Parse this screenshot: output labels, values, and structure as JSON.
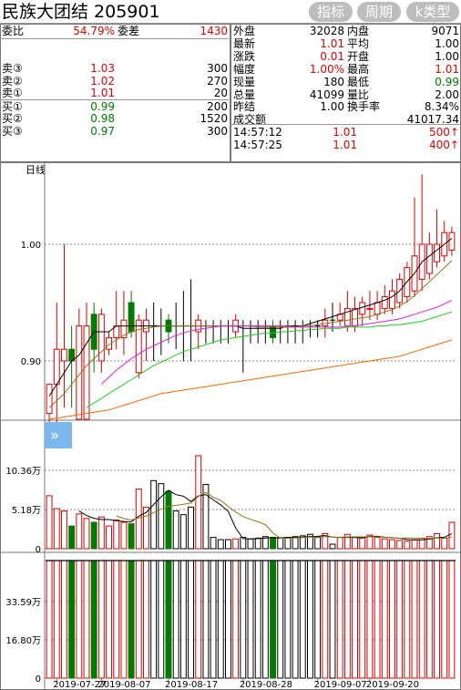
{
  "header": {
    "title": "民族大团结 205901",
    "buttons": [
      "指标",
      "周期",
      "k类型"
    ]
  },
  "order_book": {
    "weibi_label": "委比",
    "weibi_value": "54.79%",
    "weicha_label": "委差",
    "weicha_value": "1430",
    "sells": [
      {
        "label": "卖③",
        "price": "1.03",
        "volume": "300"
      },
      {
        "label": "卖②",
        "price": "1.02",
        "volume": "270"
      },
      {
        "label": "卖①",
        "price": "1.01",
        "volume": "20"
      }
    ],
    "buys": [
      {
        "label": "买①",
        "price": "0.99",
        "volume": "200"
      },
      {
        "label": "买②",
        "price": "0.98",
        "volume": "1520"
      },
      {
        "label": "买③",
        "price": "0.97",
        "volume": "300"
      }
    ]
  },
  "quote": {
    "rows": [
      {
        "l1": "外盘",
        "v1": "32028",
        "l2": "内盘",
        "v2": "9071",
        "c1": "blk",
        "c2": "blk"
      },
      {
        "l1": "最新",
        "v1": "1.01",
        "l2": "平均",
        "v2": "1.00",
        "c1": "red",
        "c2": "blk"
      },
      {
        "l1": "涨跌",
        "v1": "0.01",
        "l2": "开盘",
        "v2": "1.00",
        "c1": "red",
        "c2": "blk"
      },
      {
        "l1": "幅度",
        "v1": "1.00%",
        "l2": "最高",
        "v2": "1.01",
        "c1": "red",
        "c2": "red"
      },
      {
        "l1": "现量",
        "v1": "180",
        "l2": "最低",
        "v2": "0.99",
        "c1": "blk",
        "c2": "grn"
      },
      {
        "l1": "总量",
        "v1": "41099",
        "l2": "量比",
        "v2": "2.00",
        "c1": "blk",
        "c2": "blk"
      },
      {
        "l1": "昨结",
        "v1": "1.00",
        "l2": "换手率",
        "v2": "8.34%",
        "c1": "blk",
        "c2": "blk"
      },
      {
        "l1": "成交额",
        "v1": "",
        "l2": "",
        "v2": "41017.34",
        "c1": "blk",
        "c2": "blk"
      }
    ],
    "ticks": [
      {
        "time": "14:57:12",
        "price": "1.01",
        "volume": "500↑"
      },
      {
        "time": "14:57:25",
        "price": "1.01",
        "volume": "400↑"
      }
    ]
  },
  "colors": {
    "up": "#e00000",
    "down": "#007a00",
    "flat": "#000000",
    "ma5": "#000000",
    "ma10": "#8a7a1a",
    "ma20": "#e020e0",
    "ma30": "#22cc22",
    "ma60": "#ff6600"
  },
  "chart_data": {
    "type": "candlestick",
    "period_label": "日线",
    "price_ticks": [
      "1.00",
      "0.90"
    ],
    "price_ticks_values": [
      1.0,
      0.9
    ],
    "volume_ticks": [
      "10.36万",
      "5.18万",
      "0"
    ],
    "volume_ticks_values": [
      10.36,
      5.18,
      0
    ],
    "volume2_ticks": [
      "33.59万",
      "16.80万",
      "0"
    ],
    "volume2_ticks_values": [
      33.59,
      16.8,
      0
    ],
    "date_labels": [
      "2019-07-27",
      "2019-08-07",
      "2019-08-17",
      "2019-08-28",
      "2019-09-07",
      "2019-09-20"
    ],
    "date_label_index": [
      1,
      7,
      16,
      26,
      36,
      43
    ],
    "candles": [
      {
        "o": 0.855,
        "c": 0.88,
        "h": 0.88,
        "l": 0.845,
        "v": 7.0,
        "t": "u"
      },
      {
        "o": 0.88,
        "c": 0.91,
        "h": 0.95,
        "l": 0.84,
        "v": 5.3,
        "t": "u"
      },
      {
        "o": 0.9,
        "c": 0.91,
        "h": 1.0,
        "l": 0.86,
        "v": 5.0,
        "t": "u"
      },
      {
        "o": 0.91,
        "c": 0.9,
        "h": 0.93,
        "l": 0.86,
        "v": 3.0,
        "t": "d"
      },
      {
        "o": 0.85,
        "c": 0.93,
        "h": 0.945,
        "l": 0.85,
        "v": 4.6,
        "t": "u"
      },
      {
        "o": 0.85,
        "c": 0.93,
        "h": 0.95,
        "l": 0.85,
        "v": 4.0,
        "t": "u"
      },
      {
        "o": 0.94,
        "c": 0.91,
        "h": 0.95,
        "l": 0.89,
        "v": 3.5,
        "t": "d"
      },
      {
        "o": 0.9,
        "c": 0.94,
        "h": 0.945,
        "l": 0.89,
        "v": 4.2,
        "t": "u"
      },
      {
        "o": 0.91,
        "c": 0.92,
        "h": 0.925,
        "l": 0.905,
        "v": 3.0,
        "t": "u"
      },
      {
        "o": 0.92,
        "c": 0.93,
        "h": 0.96,
        "l": 0.91,
        "v": 3.8,
        "t": "u"
      },
      {
        "o": 0.92,
        "c": 0.935,
        "h": 0.96,
        "l": 0.905,
        "v": 3.5,
        "t": "u"
      },
      {
        "o": 0.95,
        "c": 0.925,
        "h": 0.96,
        "l": 0.92,
        "v": 3.3,
        "t": "d"
      },
      {
        "o": 0.89,
        "c": 0.935,
        "h": 0.94,
        "l": 0.885,
        "v": 7.9,
        "t": "u"
      },
      {
        "o": 0.935,
        "c": 0.925,
        "h": 0.945,
        "l": 0.9,
        "v": 5.5,
        "t": "u"
      },
      {
        "o": 0.93,
        "c": 0.93,
        "h": 0.95,
        "l": 0.9,
        "v": 9.0,
        "t": "f"
      },
      {
        "o": 0.93,
        "c": 0.93,
        "h": 0.945,
        "l": 0.905,
        "v": 8.6,
        "t": "f"
      },
      {
        "o": 0.935,
        "c": 0.925,
        "h": 0.94,
        "l": 0.915,
        "v": 7.6,
        "t": "d"
      },
      {
        "o": 0.93,
        "c": 0.93,
        "h": 0.95,
        "l": 0.91,
        "v": 5.0,
        "t": "f"
      },
      {
        "o": 0.93,
        "c": 0.93,
        "h": 0.96,
        "l": 0.9,
        "v": 4.5,
        "t": "f"
      },
      {
        "o": 0.93,
        "c": 0.93,
        "h": 0.97,
        "l": 0.9,
        "v": 5.5,
        "t": "f"
      },
      {
        "o": 0.935,
        "c": 0.925,
        "h": 0.94,
        "l": 0.91,
        "v": 12.3,
        "t": "u"
      },
      {
        "o": 0.93,
        "c": 0.93,
        "h": 0.935,
        "l": 0.915,
        "v": 8.5,
        "t": "f"
      },
      {
        "o": 0.93,
        "c": 0.93,
        "h": 0.935,
        "l": 0.915,
        "v": 1.5,
        "t": "f"
      },
      {
        "o": 0.93,
        "c": 0.93,
        "h": 0.935,
        "l": 0.915,
        "v": 1.2,
        "t": "f"
      },
      {
        "o": 0.93,
        "c": 0.93,
        "h": 0.935,
        "l": 0.915,
        "v": 1.2,
        "t": "f"
      },
      {
        "o": 0.925,
        "c": 0.935,
        "h": 0.94,
        "l": 0.92,
        "v": 1.3,
        "t": "u"
      },
      {
        "o": 0.93,
        "c": 0.93,
        "h": 0.935,
        "l": 0.89,
        "v": 1.5,
        "t": "f"
      },
      {
        "o": 0.93,
        "c": 0.93,
        "h": 0.935,
        "l": 0.915,
        "v": 1.3,
        "t": "f"
      },
      {
        "o": 0.93,
        "c": 0.93,
        "h": 0.935,
        "l": 0.915,
        "v": 1.4,
        "t": "f"
      },
      {
        "o": 0.93,
        "c": 0.93,
        "h": 0.935,
        "l": 0.915,
        "v": 1.6,
        "t": "f"
      },
      {
        "o": 0.93,
        "c": 0.92,
        "h": 0.935,
        "l": 0.915,
        "v": 1.5,
        "t": "d"
      },
      {
        "o": 0.93,
        "c": 0.93,
        "h": 0.935,
        "l": 0.915,
        "v": 1.4,
        "t": "f"
      },
      {
        "o": 0.93,
        "c": 0.93,
        "h": 0.935,
        "l": 0.915,
        "v": 1.5,
        "t": "f"
      },
      {
        "o": 0.93,
        "c": 0.93,
        "h": 0.935,
        "l": 0.915,
        "v": 1.6,
        "t": "f"
      },
      {
        "o": 0.93,
        "c": 0.93,
        "h": 0.935,
        "l": 0.915,
        "v": 1.7,
        "t": "f"
      },
      {
        "o": 0.93,
        "c": 0.93,
        "h": 0.935,
        "l": 0.92,
        "v": 1.9,
        "t": "f"
      },
      {
        "o": 0.93,
        "c": 0.93,
        "h": 0.935,
        "l": 0.92,
        "v": 1.5,
        "t": "f"
      },
      {
        "o": 0.93,
        "c": 0.935,
        "h": 0.945,
        "l": 0.92,
        "v": 2.0,
        "t": "u"
      },
      {
        "o": 0.935,
        "c": 0.935,
        "h": 0.95,
        "l": 0.925,
        "v": 0.6,
        "t": "f"
      },
      {
        "o": 0.935,
        "c": 0.94,
        "h": 0.95,
        "l": 0.93,
        "v": 1.5,
        "t": "u"
      },
      {
        "o": 0.93,
        "c": 0.945,
        "h": 0.96,
        "l": 0.925,
        "v": 1.9,
        "t": "u"
      },
      {
        "o": 0.93,
        "c": 0.945,
        "h": 0.955,
        "l": 0.925,
        "v": 1.5,
        "t": "u"
      },
      {
        "o": 0.94,
        "c": 0.95,
        "h": 0.955,
        "l": 0.93,
        "v": 1.5,
        "t": "u"
      },
      {
        "o": 0.945,
        "c": 0.945,
        "h": 0.96,
        "l": 0.935,
        "v": 1.8,
        "t": "u"
      },
      {
        "o": 0.94,
        "c": 0.95,
        "h": 0.96,
        "l": 0.935,
        "v": 1.5,
        "t": "u"
      },
      {
        "o": 0.945,
        "c": 0.955,
        "h": 0.965,
        "l": 0.94,
        "v": 1.3,
        "t": "u"
      },
      {
        "o": 0.945,
        "c": 0.96,
        "h": 0.97,
        "l": 0.94,
        "v": 1.2,
        "t": "u"
      },
      {
        "o": 0.95,
        "c": 0.97,
        "h": 0.975,
        "l": 0.945,
        "v": 1.1,
        "t": "u"
      },
      {
        "o": 0.955,
        "c": 0.98,
        "h": 0.985,
        "l": 0.95,
        "v": 1.0,
        "t": "u"
      },
      {
        "o": 0.96,
        "c": 0.99,
        "h": 1.04,
        "l": 0.955,
        "v": 1.2,
        "t": "u"
      },
      {
        "o": 0.97,
        "c": 1.0,
        "h": 1.06,
        "l": 0.96,
        "v": 1.4,
        "t": "u"
      },
      {
        "o": 0.975,
        "c": 1.0,
        "h": 1.01,
        "l": 0.97,
        "v": 1.6,
        "t": "u"
      },
      {
        "o": 0.985,
        "c": 1.0,
        "h": 1.03,
        "l": 0.98,
        "v": 2.0,
        "t": "u"
      },
      {
        "o": 0.99,
        "c": 1.01,
        "h": 1.02,
        "l": 0.985,
        "v": 1.4,
        "t": "u"
      },
      {
        "o": 0.995,
        "c": 1.01,
        "h": 1.015,
        "l": 0.99,
        "v": 3.5,
        "t": "u"
      }
    ],
    "ma_lines": [
      {
        "name": "MA5",
        "color": "#000000",
        "values": [
          0.87,
          0.88,
          0.89,
          0.9,
          0.905,
          0.915,
          0.925,
          0.925,
          0.925,
          0.93,
          0.93,
          0.93,
          0.93,
          0.93,
          0.93,
          0.93,
          0.93,
          0.93,
          0.93,
          0.93,
          0.93,
          0.93,
          0.93,
          0.93,
          0.93,
          0.93,
          0.928,
          0.928,
          0.928,
          0.928,
          0.928,
          0.928,
          0.93,
          0.93,
          0.93,
          0.932,
          0.934,
          0.936,
          0.938,
          0.94,
          0.942,
          0.944,
          0.946,
          0.948,
          0.95,
          0.952,
          0.955,
          0.96,
          0.968,
          0.975,
          0.985,
          0.99,
          0.995,
          1.0,
          1.005
        ]
      },
      {
        "name": "MA10",
        "color": "#8a7a1a",
        "values": [
          0.86,
          0.866,
          0.872,
          0.88,
          0.888,
          0.896,
          0.902,
          0.908,
          0.914,
          0.918,
          0.922,
          0.925,
          0.927,
          0.928,
          0.929,
          0.93,
          0.93,
          0.93,
          0.93,
          0.93,
          0.93,
          0.93,
          0.93,
          0.93,
          0.93,
          0.93,
          0.93,
          0.93,
          0.929,
          0.929,
          0.929,
          0.929,
          0.929,
          0.929,
          0.93,
          0.93,
          0.931,
          0.932,
          0.933,
          0.934,
          0.935,
          0.936,
          0.937,
          0.938,
          0.94,
          0.942,
          0.944,
          0.947,
          0.951,
          0.956,
          0.962,
          0.968,
          0.974,
          0.98,
          0.986
        ]
      },
      {
        "name": "MA20",
        "color": "#e020e0",
        "values": [
          null,
          null,
          null,
          null,
          null,
          null,
          null,
          0.88,
          0.886,
          0.892,
          0.897,
          0.902,
          0.906,
          0.91,
          0.913,
          0.916,
          0.919,
          0.922,
          0.924,
          0.926,
          0.927,
          0.928,
          0.929,
          0.93,
          0.93,
          0.93,
          0.93,
          0.93,
          0.93,
          0.93,
          0.93,
          0.93,
          0.93,
          0.929,
          0.929,
          0.929,
          0.929,
          0.929,
          0.929,
          0.929,
          0.93,
          0.93,
          0.931,
          0.932,
          0.933,
          0.934,
          0.935,
          0.936,
          0.938,
          0.94,
          0.942,
          0.944,
          0.946,
          0.949,
          0.952
        ]
      },
      {
        "name": "MA30",
        "color": "#22cc22",
        "values": [
          null,
          null,
          null,
          null,
          null,
          0.86,
          0.864,
          0.868,
          0.872,
          0.876,
          0.88,
          0.884,
          0.888,
          0.892,
          0.896,
          0.899,
          0.902,
          0.905,
          0.908,
          0.91,
          0.912,
          0.914,
          0.916,
          0.918,
          0.919,
          0.92,
          0.921,
          0.922,
          0.923,
          0.924,
          0.924,
          0.925,
          0.925,
          0.926,
          0.926,
          0.927,
          0.927,
          0.928,
          0.928,
          0.928,
          0.929,
          0.929,
          0.929,
          0.929,
          0.93,
          0.93,
          0.931,
          0.931,
          0.932,
          0.933,
          0.934,
          0.936,
          0.938,
          0.94,
          0.942
        ]
      },
      {
        "name": "MA60",
        "color": "#ff6600",
        "values": [
          0.85,
          0.851,
          0.852,
          0.853,
          0.854,
          0.855,
          0.856,
          0.857,
          0.858,
          0.86,
          0.862,
          0.864,
          0.866,
          0.868,
          0.87,
          0.872,
          0.873,
          0.874,
          0.875,
          0.876,
          0.877,
          0.878,
          0.879,
          0.88,
          0.881,
          0.882,
          0.883,
          0.884,
          0.885,
          0.886,
          0.887,
          0.888,
          0.889,
          0.89,
          0.891,
          0.892,
          0.893,
          0.894,
          0.895,
          0.896,
          0.897,
          0.898,
          0.899,
          0.9,
          0.901,
          0.902,
          0.903,
          0.904,
          0.906,
          0.908,
          0.91,
          0.912,
          0.914,
          0.916,
          0.918
        ]
      }
    ]
  }
}
